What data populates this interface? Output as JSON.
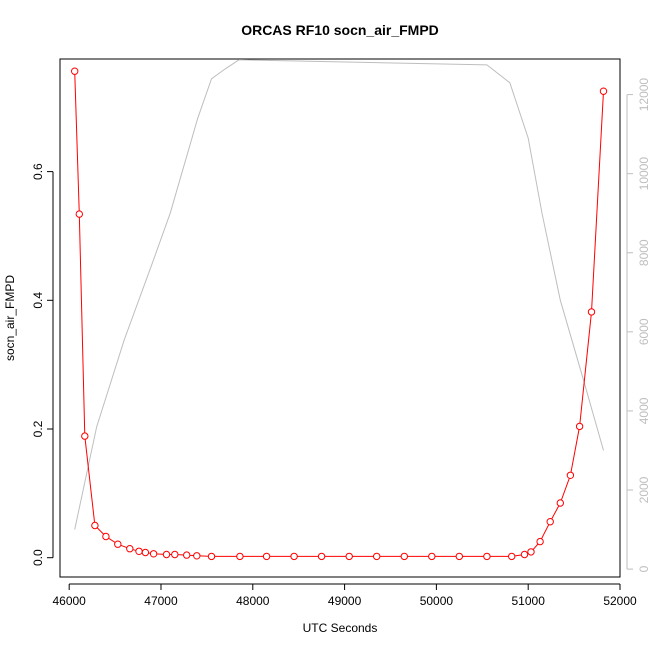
{
  "chart_data": {
    "type": "line",
    "title": "ORCAS RF10 socn_air_FMPD",
    "xlabel": "UTC Seconds",
    "ylabel": "socn_air_FMPD",
    "xlim": [
      45900,
      52000
    ],
    "ylim": [
      -0.03,
      0.775
    ],
    "y2lim": [
      -200,
      12900
    ],
    "x_ticks": [
      46000,
      47000,
      48000,
      49000,
      50000,
      51000,
      52000
    ],
    "y_ticks": [
      0.0,
      0.2,
      0.4,
      0.6
    ],
    "y_tick_labels": [
      "0.0",
      "0.2",
      "0.4",
      "0.6"
    ],
    "y2_ticks": [
      0,
      2000,
      4000,
      6000,
      8000,
      10000,
      12000
    ],
    "grid": false,
    "series": [
      {
        "axis": "left",
        "color": "#ff0000",
        "style": "line+open-circle",
        "points": [
          [
            46060,
            0.756
          ],
          [
            46110,
            0.534
          ],
          [
            46170,
            0.189
          ],
          [
            46280,
            0.05
          ],
          [
            46400,
            0.033
          ],
          [
            46530,
            0.021
          ],
          [
            46660,
            0.014
          ],
          [
            46760,
            0.01
          ],
          [
            46830,
            0.008
          ],
          [
            46920,
            0.006
          ],
          [
            47060,
            0.005
          ],
          [
            47150,
            0.005
          ],
          [
            47280,
            0.004
          ],
          [
            47390,
            0.003
          ],
          [
            47550,
            0.002
          ],
          [
            47860,
            0.002
          ],
          [
            48150,
            0.002
          ],
          [
            48450,
            0.002
          ],
          [
            48750,
            0.002
          ],
          [
            49050,
            0.002
          ],
          [
            49350,
            0.002
          ],
          [
            49650,
            0.002
          ],
          [
            49950,
            0.002
          ],
          [
            50250,
            0.002
          ],
          [
            50550,
            0.002
          ],
          [
            50820,
            0.002
          ],
          [
            50960,
            0.005
          ],
          [
            51030,
            0.009
          ],
          [
            51130,
            0.025
          ],
          [
            51240,
            0.056
          ],
          [
            51350,
            0.085
          ],
          [
            51460,
            0.128
          ],
          [
            51560,
            0.204
          ],
          [
            51690,
            0.382
          ],
          [
            51820,
            0.725
          ]
        ]
      },
      {
        "axis": "right",
        "color": "#bebebe",
        "style": "line",
        "points": [
          [
            46060,
            1000
          ],
          [
            46300,
            3600
          ],
          [
            46600,
            5800
          ],
          [
            46900,
            7700
          ],
          [
            47100,
            9000
          ],
          [
            47400,
            11400
          ],
          [
            47550,
            12400
          ],
          [
            47700,
            12650
          ],
          [
            47850,
            12880
          ],
          [
            50550,
            12750
          ],
          [
            50800,
            12300
          ],
          [
            51000,
            10900
          ],
          [
            51150,
            9000
          ],
          [
            51350,
            6800
          ],
          [
            51600,
            4800
          ],
          [
            51820,
            3000
          ]
        ]
      }
    ]
  }
}
